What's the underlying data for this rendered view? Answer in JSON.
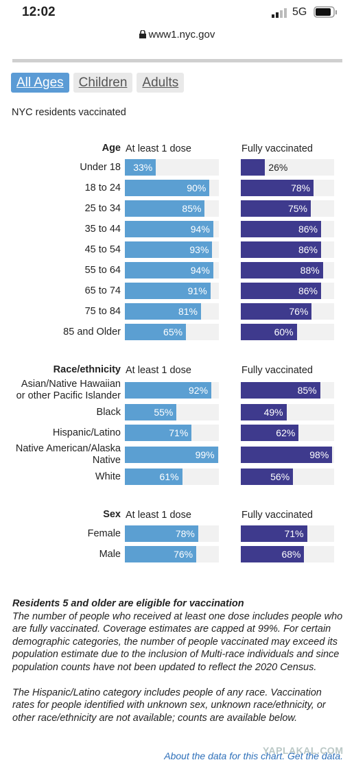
{
  "status_bar": {
    "time": "12:02",
    "network": "5G"
  },
  "url": "www1.nyc.gov",
  "tabs": [
    "All Ages",
    "Children",
    "Adults"
  ],
  "subtitle": "NYC residents vaccinated",
  "chart_data": [
    {
      "type": "bar",
      "title": "Age",
      "xlim": [
        0,
        100
      ],
      "categories": [
        "Under 18",
        "18 to 24",
        "25 to 34",
        "35 to 44",
        "45 to 54",
        "55 to 64",
        "65 to 74",
        "75 to 84",
        "85 and Older"
      ],
      "series": [
        {
          "name": "At least 1 dose",
          "color": "#5b9fd2",
          "values": [
            33,
            90,
            85,
            94,
            93,
            94,
            91,
            81,
            65
          ],
          "value_labels": [
            "33%",
            "90%",
            "85%",
            "94%",
            "93%",
            "94%",
            "91%",
            "81%",
            "65%"
          ]
        },
        {
          "name": "Fully vaccinated",
          "color": "#3e3a8d",
          "values": [
            26,
            78,
            75,
            86,
            86,
            88,
            86,
            76,
            60
          ],
          "value_labels": [
            "26%",
            "78%",
            "75%",
            "86%",
            "86%",
            "88%",
            "86%",
            "76%",
            "60%"
          ]
        }
      ]
    },
    {
      "type": "bar",
      "title": "Race/ethnicity",
      "xlim": [
        0,
        100
      ],
      "categories": [
        "Asian/Native Hawaiian\nor other Pacific Islander",
        "Black",
        "Hispanic/Latino",
        "Native American/Alaska\nNative",
        "White"
      ],
      "series": [
        {
          "name": "At least 1 dose",
          "color": "#5b9fd2",
          "values": [
            92,
            55,
            71,
            99,
            61
          ],
          "value_labels": [
            "92%",
            "55%",
            "71%",
            "99%",
            "61%"
          ]
        },
        {
          "name": "Fully vaccinated",
          "color": "#3e3a8d",
          "values": [
            85,
            49,
            62,
            98,
            56
          ],
          "value_labels": [
            "85%",
            "49%",
            "62%",
            "98%",
            "56%"
          ]
        }
      ]
    },
    {
      "type": "bar",
      "title": "Sex",
      "xlim": [
        0,
        100
      ],
      "categories": [
        "Female",
        "Male"
      ],
      "series": [
        {
          "name": "At least 1 dose",
          "color": "#5b9fd2",
          "values": [
            78,
            76
          ],
          "value_labels": [
            "78%",
            "76%"
          ]
        },
        {
          "name": "Fully vaccinated",
          "color": "#3e3a8d",
          "values": [
            71,
            68
          ],
          "value_labels": [
            "71%",
            "68%"
          ]
        }
      ]
    }
  ],
  "notes": {
    "heading": "Residents 5 and older are eligible for vaccination",
    "paragraphs": [
      "The number of people who received at least one dose includes people who are fully vaccinated. Coverage estimates are capped at 99%. For certain demographic categories, the number of people vaccinated may exceed its population estimate due to the inclusion of Multi-race individuals and since population counts have not been updated to reflect the 2020 Census.",
      "The Hispanic/Latino category includes people of any race. Vaccination rates for people identified with unknown sex, unknown race/ethnicity, or other race/ethnicity are not available; counts are available below."
    ]
  },
  "links": [
    "About the data for this chart.",
    "Get the data."
  ],
  "watermark": "YAPLAKAL.COM"
}
